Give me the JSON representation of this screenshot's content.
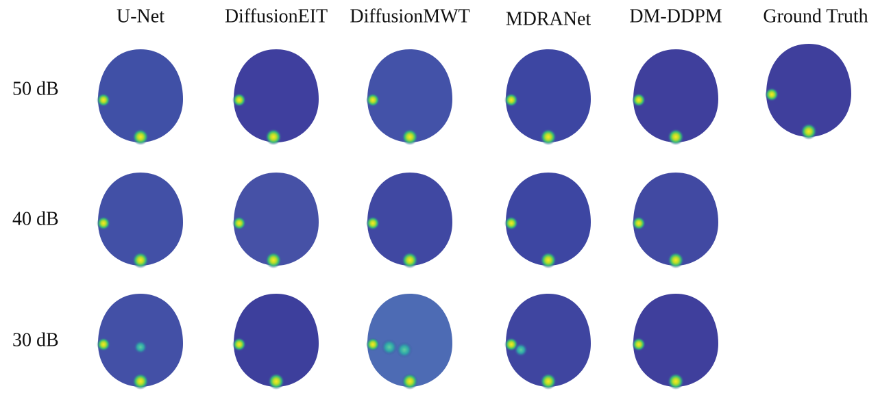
{
  "columns": [
    "U-Net",
    "DiffusionEIT",
    "DiffusionMWT",
    "MDRANet",
    "DM-DDPM",
    "Ground Truth"
  ],
  "rows": [
    "50 dB",
    "40 dB",
    "30 dB"
  ]
}
